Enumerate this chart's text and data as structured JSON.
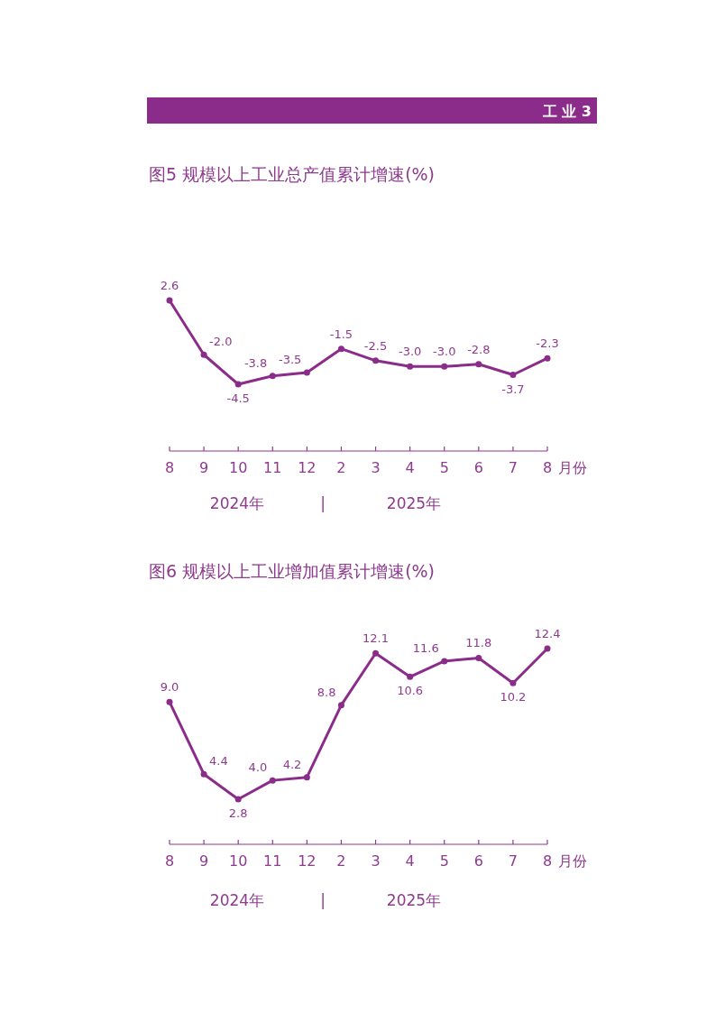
{
  "chart_data": [
    {
      "type": "line",
      "title": "图5  规模以上工业总产值累计增速(%)",
      "xlabel": "月份",
      "categories": [
        "8",
        "9",
        "10",
        "11",
        "12",
        "2",
        "3",
        "4",
        "5",
        "6",
        "7",
        "8"
      ],
      "series": [
        {
          "color": "#8b2c8b",
          "values": [
            2.6,
            -2.0,
            -4.5,
            -3.8,
            -3.5,
            -1.5,
            -2.5,
            -3.0,
            -3.0,
            -2.8,
            -3.7,
            -2.3
          ],
          "value_labels": [
            "2.6",
            "-2.0",
            "-4.5",
            "-3.8",
            "-3.5",
            "-1.5",
            "-2.5",
            "-3.0",
            "-3.0",
            "-2.8",
            "-3.7",
            "-2.3"
          ]
        }
      ],
      "marker": "circle",
      "line_style": "solid",
      "annotations": [
        "工 业 3",
        "2024年",
        "|",
        "2025年"
      ]
    },
    {
      "type": "line",
      "title": "图6  规模以上工业增加值累计增速(%)",
      "xlabel": "月份",
      "categories": [
        "8",
        "9",
        "10",
        "11",
        "12",
        "2",
        "3",
        "4",
        "5",
        "6",
        "7",
        "8"
      ],
      "series": [
        {
          "color": "#8b2c8b",
          "values": [
            9.0,
            4.4,
            2.8,
            4.0,
            4.2,
            8.8,
            12.1,
            10.6,
            11.6,
            11.8,
            10.2,
            12.4
          ],
          "value_labels": [
            "9.0",
            "4.4",
            "2.8",
            "4.0",
            "4.2",
            "8.8",
            "12.1",
            "10.6",
            "11.6",
            "11.8",
            "10.2",
            "12.4"
          ]
        }
      ],
      "marker": "circle",
      "line_style": "solid",
      "annotations": [
        "2024年",
        "|",
        "2025年"
      ]
    }
  ]
}
